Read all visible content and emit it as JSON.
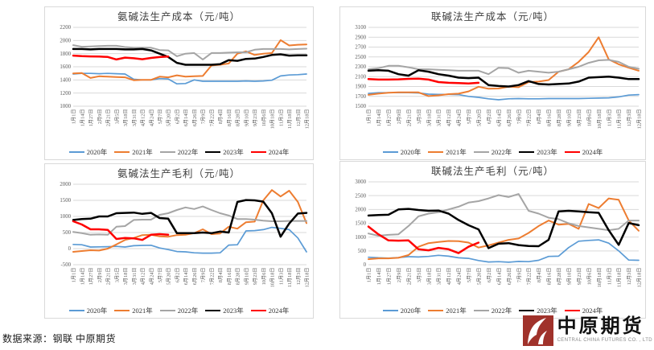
{
  "footer": {
    "source_note": "数据来源：钢联  中原期货",
    "logo_cn": "中原期货",
    "logo_en": "CENTRAL CHINA FUTURES CO. , LTD"
  },
  "colors": {
    "y2020": "#5B9BD5",
    "y2021": "#ED7D31",
    "y2022": "#A5A5A5",
    "y2023": "#000000",
    "y2024": "#FF0000",
    "grid": "#d9d9d9",
    "tick_text": "#595959"
  },
  "chart_data": [
    {
      "type": "line",
      "title": "氨碱法生产成本（元/吨）",
      "ylim": [
        1000,
        2200
      ],
      "ytick_step": 200,
      "grid": true,
      "legend_position": "bottom",
      "categories": [
        "1月1日",
        "1月14日",
        "1月27日",
        "2月9日",
        "2月21日",
        "3月5日",
        "3月18日",
        "3月31日",
        "4月12日",
        "4月24日",
        "5月7日",
        "5月20日",
        "6月2日",
        "6月14日",
        "6月26日",
        "7月9日",
        "7月22日",
        "8月4日",
        "8月16日",
        "8月28日",
        "9月10日",
        "9月23日",
        "10月6日",
        "10月18日",
        "11月3日",
        "11月18日",
        "12月3日",
        "12月18日"
      ],
      "series": [
        {
          "name": "2020年",
          "color": "#5B9BD5",
          "width": 1.7,
          "values": [
            1490,
            1500,
            1500,
            1495,
            1500,
            1495,
            1490,
            1410,
            1400,
            1400,
            1420,
            1415,
            1340,
            1345,
            1400,
            1380,
            1380,
            1380,
            1380,
            1380,
            1385,
            1380,
            1385,
            1395,
            1460,
            1475,
            1480,
            1490
          ]
        },
        {
          "name": "2021年",
          "color": "#ED7D31",
          "width": 2.0,
          "values": [
            1500,
            1505,
            1430,
            1455,
            1450,
            1445,
            1440,
            1395,
            1400,
            1400,
            1450,
            1440,
            1470,
            1450,
            1455,
            1460,
            1620,
            1630,
            1650,
            1800,
            1835,
            1780,
            1800,
            1810,
            2005,
            1925,
            1935,
            1940
          ]
        },
        {
          "name": "2022年",
          "color": "#A5A5A5",
          "width": 2.0,
          "values": [
            1930,
            1905,
            1910,
            1915,
            1920,
            1920,
            1900,
            1890,
            1890,
            1890,
            1855,
            1850,
            1760,
            1800,
            1810,
            1710,
            1810,
            1810,
            1815,
            1820,
            1820,
            1860,
            1870,
            1870,
            1870,
            1865,
            1870,
            1875
          ]
        },
        {
          "name": "2023年",
          "color": "#000000",
          "width": 2.5,
          "values": [
            1870,
            1870,
            1865,
            1870,
            1870,
            1870,
            1865,
            1865,
            1870,
            1850,
            1800,
            1750,
            1660,
            1630,
            1630,
            1630,
            1630,
            1640,
            1700,
            1690,
            1720,
            1725,
            1750,
            1780,
            1790,
            1770,
            1775,
            1775
          ]
        },
        {
          "name": "2024年",
          "color": "#FF0000",
          "width": 2.5,
          "values": [
            1770,
            1762,
            1758,
            1755,
            1750,
            1712,
            1740,
            1730,
            1715,
            1735,
            1748,
            1755
          ]
        }
      ]
    },
    {
      "type": "line",
      "title": "联碱法生产成本（元/吨）",
      "ylim": [
        1500,
        3100
      ],
      "ytick_step": 200,
      "grid": true,
      "legend_position": "bottom",
      "categories": [
        "1月1日",
        "1月14日",
        "1月27日",
        "2月9日",
        "2月21日",
        "3月5日",
        "3月18日",
        "3月31日",
        "4月12日",
        "4月24日",
        "5月7日",
        "5月20日",
        "6月2日",
        "6月14日",
        "6月26日",
        "7月9日",
        "7月22日",
        "8月4日",
        "8月16日",
        "8月28日",
        "9月10日",
        "9月23日",
        "10月6日",
        "10月18日",
        "11月3日",
        "11月18日",
        "12月3日",
        "12月18日"
      ],
      "series": [
        {
          "name": "2020年",
          "color": "#5B9BD5",
          "width": 1.7,
          "values": [
            1760,
            1775,
            1775,
            1775,
            1775,
            1770,
            1745,
            1740,
            1740,
            1735,
            1700,
            1680,
            1650,
            1630,
            1650,
            1655,
            1650,
            1650,
            1655,
            1655,
            1655,
            1655,
            1660,
            1665,
            1670,
            1690,
            1725,
            1735
          ]
        },
        {
          "name": "2021年",
          "color": "#ED7D31",
          "width": 2.0,
          "values": [
            1730,
            1755,
            1775,
            1780,
            1780,
            1780,
            1705,
            1720,
            1745,
            1755,
            1800,
            1895,
            1855,
            1860,
            1895,
            1885,
            1990,
            2000,
            2030,
            2200,
            2250,
            2400,
            2600,
            2900,
            2450,
            2350,
            2280,
            2220
          ]
        },
        {
          "name": "2022年",
          "color": "#A5A5A5",
          "width": 2.0,
          "values": [
            2250,
            2270,
            2320,
            2320,
            2290,
            2250,
            2250,
            2240,
            2230,
            2220,
            2220,
            2220,
            2150,
            2280,
            2270,
            2180,
            2220,
            2200,
            2180,
            2200,
            2250,
            2300,
            2380,
            2430,
            2440,
            2400,
            2300,
            2260
          ]
        },
        {
          "name": "2023年",
          "color": "#000000",
          "width": 2.5,
          "values": [
            2220,
            2230,
            2220,
            2150,
            2120,
            2230,
            2200,
            2150,
            2120,
            2080,
            2070,
            2080,
            1930,
            1910,
            1900,
            1930,
            2010,
            1950,
            1940,
            1950,
            1960,
            2000,
            2080,
            2090,
            2100,
            2080,
            2050,
            2050
          ]
        },
        {
          "name": "2024年",
          "color": "#FF0000",
          "width": 2.5,
          "values": [
            2050,
            2040,
            2040,
            2045,
            2055,
            2060,
            2040,
            1990,
            1975,
            1970,
            1960,
            1975
          ]
        }
      ]
    },
    {
      "type": "line",
      "title": "氨碱法生产毛利（元/吨）",
      "ylim": [
        -500,
        2000
      ],
      "ytick_step": 500,
      "grid": true,
      "legend_position": "bottom",
      "categories": [
        "1月1日",
        "1月14日",
        "1月27日",
        "2月9日",
        "2月21日",
        "3月5日",
        "3月18日",
        "3月31日",
        "4月12日",
        "4月24日",
        "5月7日",
        "5月20日",
        "6月2日",
        "6月14日",
        "6月26日",
        "7月9日",
        "7月22日",
        "8月4日",
        "8月16日",
        "8月28日",
        "9月10日",
        "9月23日",
        "10月6日",
        "10月18日",
        "11月3日",
        "11月18日",
        "12月3日",
        "12月18日"
      ],
      "series": [
        {
          "name": "2020年",
          "color": "#5B9BD5",
          "width": 1.7,
          "values": [
            130,
            120,
            50,
            55,
            60,
            70,
            50,
            90,
            100,
            105,
            20,
            -30,
            -90,
            -100,
            -130,
            -140,
            -140,
            -130,
            110,
            120,
            550,
            560,
            590,
            660,
            630,
            590,
            330,
            -100
          ]
        },
        {
          "name": "2021年",
          "color": "#ED7D31",
          "width": 2.0,
          "values": [
            -100,
            -75,
            -50,
            -60,
            0,
            130,
            270,
            330,
            420,
            430,
            380,
            370,
            420,
            430,
            480,
            600,
            450,
            470,
            680,
            620,
            820,
            840,
            1500,
            1820,
            1620,
            1800,
            1450,
            790
          ]
        },
        {
          "name": "2022年",
          "color": "#A5A5A5",
          "width": 2.0,
          "values": [
            520,
            480,
            430,
            440,
            430,
            680,
            700,
            890,
            900,
            900,
            1050,
            1100,
            1200,
            1280,
            1230,
            1310,
            1200,
            1100,
            1030,
            920,
            920,
            900,
            870,
            850,
            850,
            860,
            860,
            860
          ]
        },
        {
          "name": "2023年",
          "color": "#000000",
          "width": 2.5,
          "values": [
            890,
            920,
            930,
            1000,
            1000,
            1100,
            1110,
            1120,
            1080,
            1110,
            950,
            930,
            480,
            480,
            480,
            500,
            480,
            530,
            500,
            1450,
            1510,
            1500,
            1460,
            1100,
            370,
            780,
            1090,
            1110
          ]
        },
        {
          "name": "2024年",
          "color": "#FF0000",
          "width": 2.5,
          "values": [
            850,
            750,
            600,
            600,
            580,
            300,
            330,
            320,
            270,
            430,
            450,
            430
          ]
        }
      ]
    },
    {
      "type": "line",
      "title": "联碱法生产毛利（元/吨）",
      "ylim": [
        0,
        3000
      ],
      "ytick_step": 500,
      "grid": true,
      "legend_position": "bottom",
      "categories": [
        "1月1日",
        "1月14日",
        "1月27日",
        "2月9日",
        "2月21日",
        "3月5日",
        "3月18日",
        "3月31日",
        "4月12日",
        "4月24日",
        "5月7日",
        "5月20日",
        "6月2日",
        "6月14日",
        "6月26日",
        "7月9日",
        "7月22日",
        "8月4日",
        "8月16日",
        "8月28日",
        "9月10日",
        "9月23日",
        "10月6日",
        "10月18日",
        "11月3日",
        "11月18日",
        "12月3日",
        "12月18日"
      ],
      "series": [
        {
          "name": "2020年",
          "color": "#5B9BD5",
          "width": 1.7,
          "values": [
            270,
            250,
            240,
            260,
            290,
            280,
            300,
            340,
            310,
            250,
            230,
            150,
            100,
            110,
            90,
            120,
            110,
            160,
            300,
            310,
            620,
            850,
            880,
            900,
            780,
            500,
            170,
            160
          ]
        },
        {
          "name": "2021年",
          "color": "#ED7D31",
          "width": 2.0,
          "values": [
            200,
            230,
            230,
            250,
            350,
            650,
            780,
            820,
            860,
            850,
            800,
            620,
            700,
            800,
            900,
            950,
            1150,
            1400,
            1600,
            1450,
            1480,
            1300,
            2200,
            2050,
            2400,
            2350,
            1600,
            1230
          ]
        },
        {
          "name": "2022年",
          "color": "#A5A5A5",
          "width": 2.0,
          "values": [
            1130,
            1050,
            1080,
            1100,
            1400,
            1750,
            1850,
            1900,
            2000,
            2100,
            2250,
            2300,
            2400,
            2520,
            2450,
            2560,
            1950,
            1850,
            1700,
            1650,
            1500,
            1400,
            1350,
            1300,
            1250,
            1300,
            1600,
            1600
          ]
        },
        {
          "name": "2023年",
          "color": "#000000",
          "width": 2.5,
          "values": [
            1780,
            1800,
            1810,
            2000,
            2020,
            1980,
            1950,
            1960,
            1850,
            1620,
            1430,
            1280,
            600,
            760,
            780,
            710,
            680,
            670,
            900,
            1930,
            1950,
            1930,
            1900,
            1880,
            1250,
            720,
            1510,
            1430
          ]
        },
        {
          "name": "2024年",
          "color": "#FF0000",
          "width": 2.5,
          "values": [
            1380,
            1100,
            880,
            870,
            880,
            560,
            520,
            610,
            560,
            420,
            650,
            800
          ]
        }
      ]
    }
  ]
}
